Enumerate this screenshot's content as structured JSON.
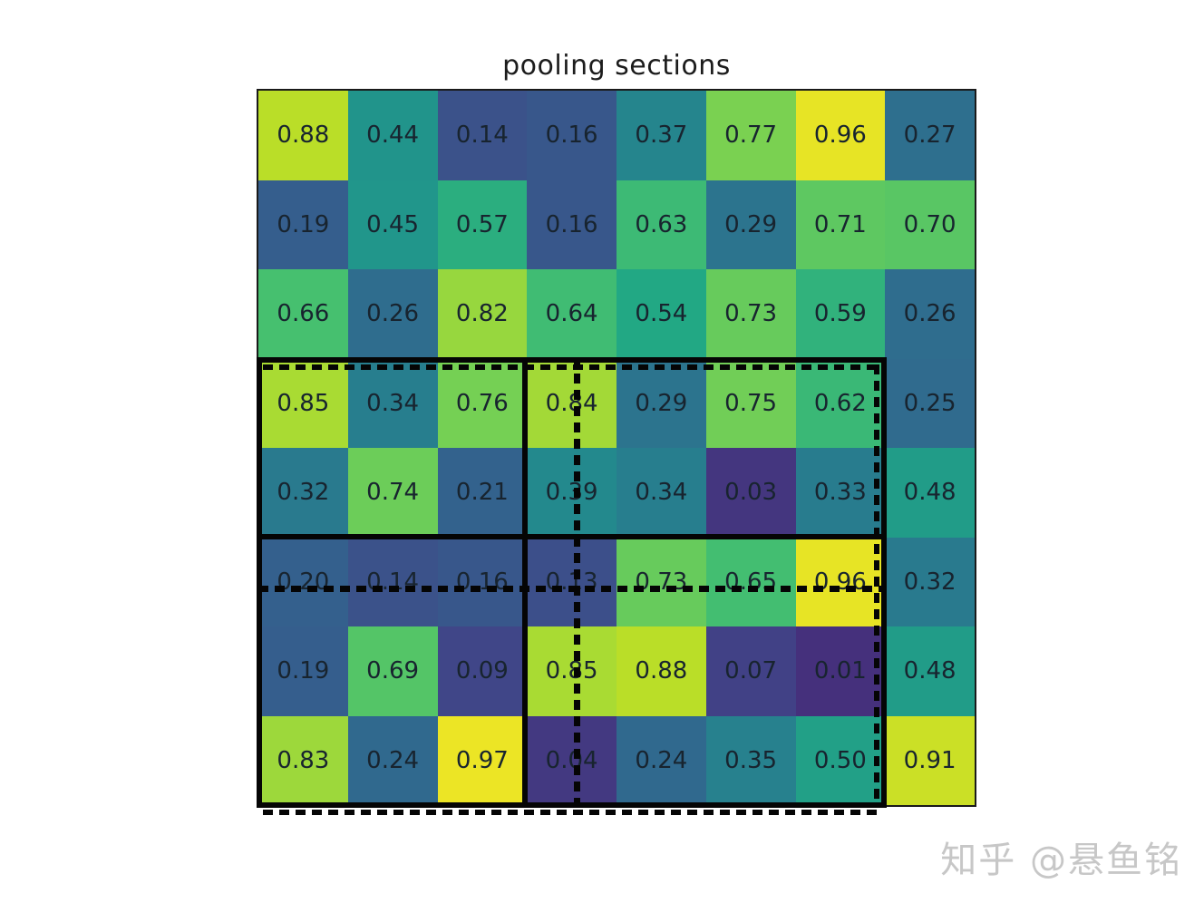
{
  "figure": {
    "background_color": "#ffffff",
    "title_color": "#1c1c1c",
    "cell_text_color": "#18242f",
    "overlay_line_color": "#050505"
  },
  "watermark": {
    "text": "知乎 @悬鱼铭",
    "color": "#c7c7c7"
  },
  "chart_data": {
    "type": "heatmap",
    "title": "pooling sections",
    "colormap": "viridis",
    "value_range": [
      0,
      1
    ],
    "rows": 8,
    "cols": 8,
    "cell_label_format": "two_decimals",
    "values": [
      [
        0.88,
        0.44,
        0.14,
        0.16,
        0.37,
        0.77,
        0.96,
        0.27
      ],
      [
        0.19,
        0.45,
        0.57,
        0.16,
        0.63,
        0.29,
        0.71,
        0.7
      ],
      [
        0.66,
        0.26,
        0.82,
        0.64,
        0.54,
        0.73,
        0.59,
        0.26
      ],
      [
        0.85,
        0.34,
        0.76,
        0.84,
        0.29,
        0.75,
        0.62,
        0.25
      ],
      [
        0.32,
        0.74,
        0.21,
        0.39,
        0.34,
        0.03,
        0.33,
        0.48
      ],
      [
        0.2,
        0.14,
        0.16,
        0.13,
        0.73,
        0.65,
        0.96,
        0.32
      ],
      [
        0.19,
        0.69,
        0.09,
        0.85,
        0.88,
        0.07,
        0.01,
        0.48
      ],
      [
        0.83,
        0.24,
        0.97,
        0.04,
        0.24,
        0.35,
        0.5,
        0.91
      ]
    ],
    "overlays": {
      "solid_box": {
        "row_start": 4,
        "row_end": 8,
        "col_start": 1,
        "col_end": 7,
        "style": "solid"
      },
      "solid_vertical_divider_after_col": 3,
      "solid_horizontal_divider_after_row": 5,
      "dashed_box": {
        "row_start": 4,
        "row_end": 8,
        "col_start": 1,
        "col_end": 7,
        "style": "dashed"
      },
      "dashed_vertical_through_col": 4,
      "dashed_horizontal_through_row": 6
    },
    "legend": "none",
    "axes_ticks": "none"
  }
}
